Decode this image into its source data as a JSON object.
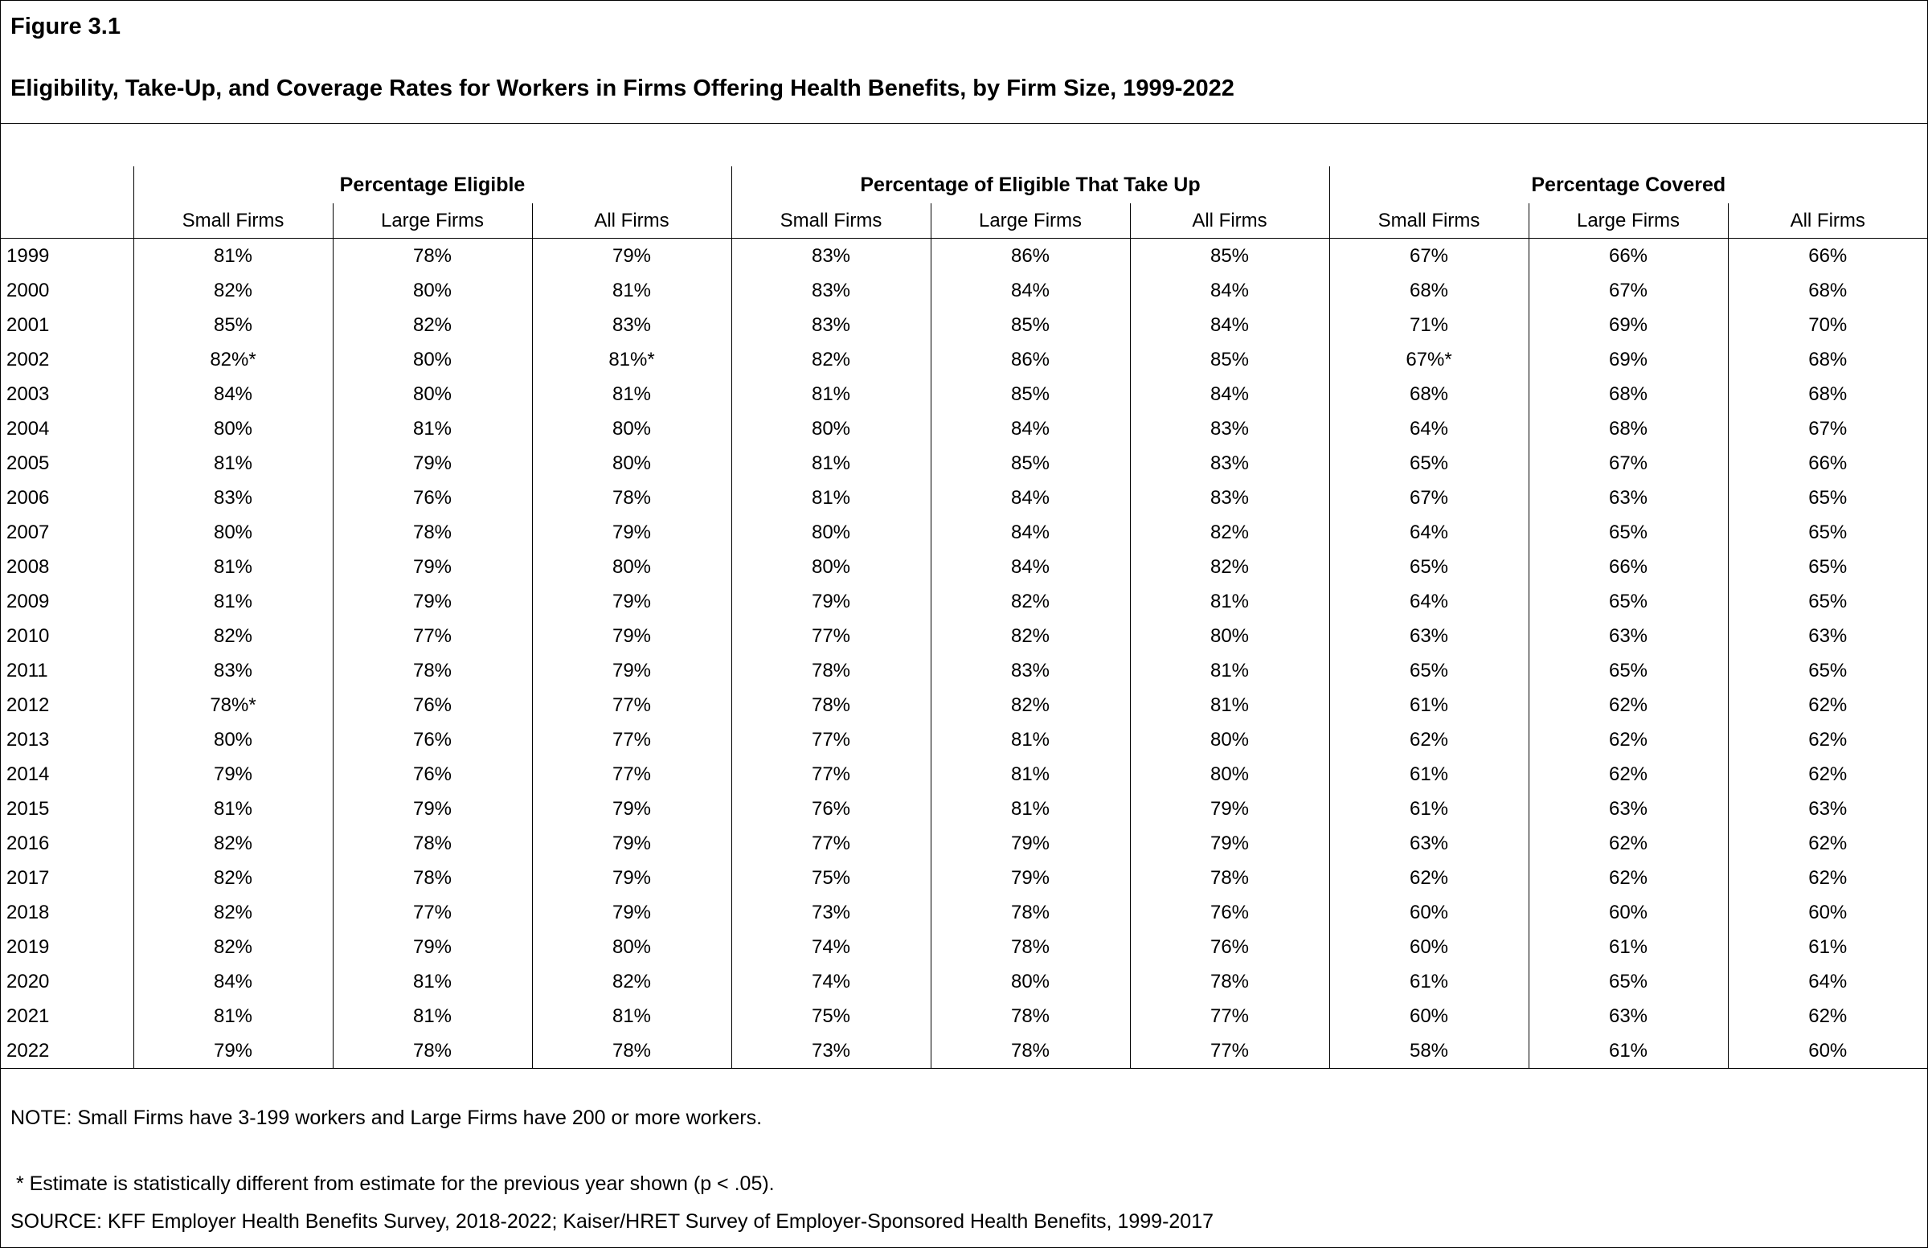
{
  "figure": {
    "label": "Figure 3.1",
    "title": "Eligibility, Take-Up, and Coverage Rates for Workers in Firms Offering Health Benefits, by Firm Size, 1999-2022"
  },
  "chart_data": {
    "type": "table",
    "title": "Eligibility, Take-Up, and Coverage Rates for Workers in Firms Offering Health Benefits, by Firm Size, 1999-2022",
    "groups": [
      "Percentage Eligible",
      "Percentage of Eligible That Take Up",
      "Percentage Covered"
    ],
    "subcolumns": [
      "Small Firms",
      "Large Firms",
      "All Firms"
    ],
    "year_column_label": "",
    "rows": [
      {
        "year": "1999",
        "values": [
          "81%",
          "78%",
          "79%",
          "83%",
          "86%",
          "85%",
          "67%",
          "66%",
          "66%"
        ]
      },
      {
        "year": "2000",
        "values": [
          "82%",
          "80%",
          "81%",
          "83%",
          "84%",
          "84%",
          "68%",
          "67%",
          "68%"
        ]
      },
      {
        "year": "2001",
        "values": [
          "85%",
          "82%",
          "83%",
          "83%",
          "85%",
          "84%",
          "71%",
          "69%",
          "70%"
        ]
      },
      {
        "year": "2002",
        "values": [
          "82%*",
          "80%",
          "81%*",
          "82%",
          "86%",
          "85%",
          "67%*",
          "69%",
          "68%"
        ]
      },
      {
        "year": "2003",
        "values": [
          "84%",
          "80%",
          "81%",
          "81%",
          "85%",
          "84%",
          "68%",
          "68%",
          "68%"
        ]
      },
      {
        "year": "2004",
        "values": [
          "80%",
          "81%",
          "80%",
          "80%",
          "84%",
          "83%",
          "64%",
          "68%",
          "67%"
        ]
      },
      {
        "year": "2005",
        "values": [
          "81%",
          "79%",
          "80%",
          "81%",
          "85%",
          "83%",
          "65%",
          "67%",
          "66%"
        ]
      },
      {
        "year": "2006",
        "values": [
          "83%",
          "76%",
          "78%",
          "81%",
          "84%",
          "83%",
          "67%",
          "63%",
          "65%"
        ]
      },
      {
        "year": "2007",
        "values": [
          "80%",
          "78%",
          "79%",
          "80%",
          "84%",
          "82%",
          "64%",
          "65%",
          "65%"
        ]
      },
      {
        "year": "2008",
        "values": [
          "81%",
          "79%",
          "80%",
          "80%",
          "84%",
          "82%",
          "65%",
          "66%",
          "65%"
        ]
      },
      {
        "year": "2009",
        "values": [
          "81%",
          "79%",
          "79%",
          "79%",
          "82%",
          "81%",
          "64%",
          "65%",
          "65%"
        ]
      },
      {
        "year": "2010",
        "values": [
          "82%",
          "77%",
          "79%",
          "77%",
          "82%",
          "80%",
          "63%",
          "63%",
          "63%"
        ]
      },
      {
        "year": "2011",
        "values": [
          "83%",
          "78%",
          "79%",
          "78%",
          "83%",
          "81%",
          "65%",
          "65%",
          "65%"
        ]
      },
      {
        "year": "2012",
        "values": [
          "78%*",
          "76%",
          "77%",
          "78%",
          "82%",
          "81%",
          "61%",
          "62%",
          "62%"
        ]
      },
      {
        "year": "2013",
        "values": [
          "80%",
          "76%",
          "77%",
          "77%",
          "81%",
          "80%",
          "62%",
          "62%",
          "62%"
        ]
      },
      {
        "year": "2014",
        "values": [
          "79%",
          "76%",
          "77%",
          "77%",
          "81%",
          "80%",
          "61%",
          "62%",
          "62%"
        ]
      },
      {
        "year": "2015",
        "values": [
          "81%",
          "79%",
          "79%",
          "76%",
          "81%",
          "79%",
          "61%",
          "63%",
          "63%"
        ]
      },
      {
        "year": "2016",
        "values": [
          "82%",
          "78%",
          "79%",
          "77%",
          "79%",
          "79%",
          "63%",
          "62%",
          "62%"
        ]
      },
      {
        "year": "2017",
        "values": [
          "82%",
          "78%",
          "79%",
          "75%",
          "79%",
          "78%",
          "62%",
          "62%",
          "62%"
        ]
      },
      {
        "year": "2018",
        "values": [
          "82%",
          "77%",
          "79%",
          "73%",
          "78%",
          "76%",
          "60%",
          "60%",
          "60%"
        ]
      },
      {
        "year": "2019",
        "values": [
          "82%",
          "79%",
          "80%",
          "74%",
          "78%",
          "76%",
          "60%",
          "61%",
          "61%"
        ]
      },
      {
        "year": "2020",
        "values": [
          "84%",
          "81%",
          "82%",
          "74%",
          "80%",
          "78%",
          "61%",
          "65%",
          "64%"
        ]
      },
      {
        "year": "2021",
        "values": [
          "81%",
          "81%",
          "81%",
          "75%",
          "78%",
          "77%",
          "60%",
          "63%",
          "62%"
        ]
      },
      {
        "year": "2022",
        "values": [
          "79%",
          "78%",
          "78%",
          "73%",
          "78%",
          "77%",
          "58%",
          "61%",
          "60%"
        ]
      }
    ]
  },
  "notes": {
    "note": "NOTE: Small Firms have 3-199 workers and Large Firms have 200 or more workers.",
    "asterisk": " * Estimate is statistically different from estimate for the previous year shown (p < .05).",
    "source": "SOURCE: KFF Employer Health Benefits Survey, 2018-2022; Kaiser/HRET Survey of Employer-Sponsored Health Benefits, 1999-2017"
  }
}
